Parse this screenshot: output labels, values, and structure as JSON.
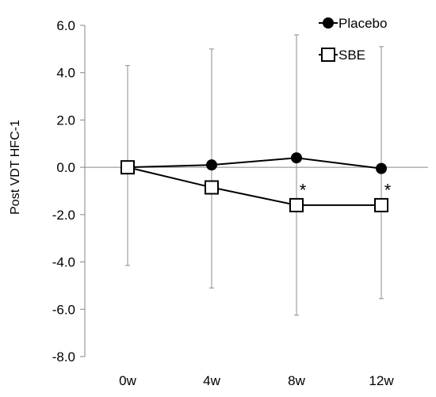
{
  "chart_data": {
    "type": "line",
    "title": "",
    "xlabel": "",
    "ylabel": "Post VDT HFC-1",
    "ylim": [
      -8.0,
      6.0
    ],
    "yticks": [
      "6.0",
      "4.0",
      "2.0",
      "0.0",
      "-2.0",
      "-4.0",
      "-6.0",
      "-8.0"
    ],
    "ytick_values": [
      6,
      4,
      2,
      0,
      -2,
      -4,
      -6,
      -8
    ],
    "categories": [
      "0w",
      "4w",
      "8w",
      "12w"
    ],
    "legend_position": "top-right",
    "grid": false,
    "series": [
      {
        "name": "Placebo",
        "marker": "filled-circle",
        "color": "#000000",
        "values": [
          0.0,
          0.1,
          0.4,
          -0.05
        ]
      },
      {
        "name": "SBE",
        "marker": "open-square",
        "color": "#000000",
        "values": [
          0.0,
          -0.85,
          -1.6,
          -1.6
        ]
      }
    ],
    "error_bars": [
      {
        "category": "0w",
        "upper": 4.3,
        "lower": -4.15
      },
      {
        "category": "4w",
        "upper": 5.0,
        "lower": -5.1
      },
      {
        "category": "8w",
        "upper": 5.6,
        "lower": -6.25
      },
      {
        "category": "12w",
        "upper": 5.1,
        "lower": -5.55
      }
    ],
    "annotations": [
      {
        "text": "*",
        "category": "8w",
        "y": -0.75
      },
      {
        "text": "*",
        "category": "12w",
        "y": -0.75
      }
    ]
  }
}
